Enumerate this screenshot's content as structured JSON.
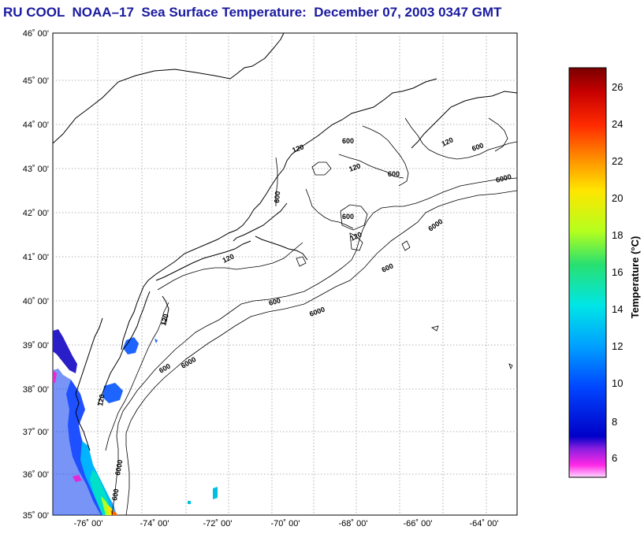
{
  "title": "RU COOL  NOAA–17  Sea Surface Temperature:  December 07, 2003 0347 GMT",
  "map": {
    "lat_labels": [
      "46˚ 00'",
      "45˚ 00'",
      "44˚ 00'",
      "43˚ 00'",
      "42˚ 00'",
      "41˚ 00'",
      "40˚ 00'",
      "39˚ 00'",
      "38˚ 00'",
      "37˚ 00'",
      "36˚ 00'",
      "35˚ 00'"
    ],
    "lon_labels": [
      "-76˚ 00'",
      "-74˚ 00'",
      "-72˚ 00'",
      "-70˚ 00'",
      "-68˚ 00'",
      "-66˚ 00'",
      "-64˚ 00'"
    ],
    "contour_labels": [
      "120",
      "600",
      "6000"
    ]
  },
  "colorbar": {
    "title": "Temperature (°C)",
    "ticks": [
      "26",
      "24",
      "22",
      "20",
      "18",
      "16",
      "14",
      "12",
      "10",
      "8",
      "6"
    ],
    "min": 5,
    "max": 27,
    "colors": {
      "stop_27": "#7a0000",
      "stop_24": "#ff2a00",
      "stop_22": "#ff8c00",
      "stop_20": "#ffe600",
      "stop_18": "#b4ff1e",
      "stop_16": "#28e070",
      "stop_14": "#00e6e6",
      "stop_12": "#00a0ff",
      "stop_10": "#0046ff",
      "stop_8": "#0000c8",
      "stop_7": "#8a1ee0",
      "stop_6": "#ff28e6",
      "stop_5": "#ffb4ff"
    }
  }
}
